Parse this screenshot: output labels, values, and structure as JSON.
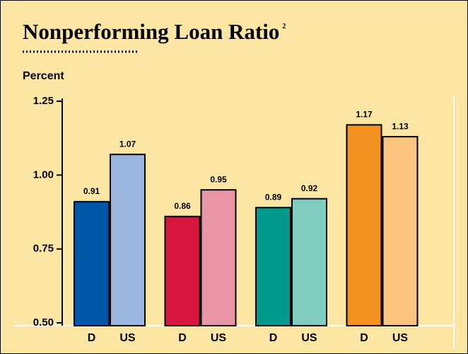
{
  "chart_data": {
    "type": "bar",
    "title": "Nonperforming Loan Ratio",
    "title_note": "2",
    "y_label": "Percent",
    "categories": [
      "D",
      "US",
      "D",
      "US",
      "D",
      "US",
      "D",
      "US"
    ],
    "values": [
      0.91,
      1.07,
      0.86,
      0.95,
      0.89,
      0.92,
      1.17,
      1.13
    ],
    "colors": [
      "#0057a8",
      "#9ab6df",
      "#d9163f",
      "#e995a5",
      "#00998b",
      "#80cdc0",
      "#f39220",
      "#fdc47f"
    ],
    "ylim": [
      0.5,
      1.25
    ],
    "yticks": [
      {
        "value": 0.5,
        "label": "0.50"
      },
      0.75,
      {
        "value": 1,
        "label": "1.00"
      },
      1.25
    ]
  }
}
